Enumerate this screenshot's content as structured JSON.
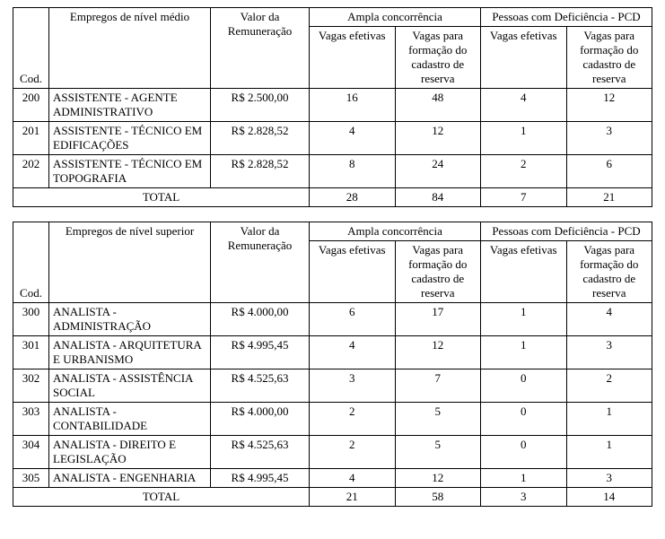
{
  "colors": {
    "text": "#000000",
    "border": "#000000",
    "background": "#ffffff"
  },
  "typography": {
    "family": "Times New Roman",
    "base_size_pt": 10
  },
  "tables": [
    {
      "headers": {
        "cod": "Cod.",
        "job": "Empregos de nível médio",
        "value": "Valor da Remuneração",
        "ampla": "Ampla concorrência",
        "pcd": "Pessoas com Deficiência - PCD",
        "vagas_efetivas": "Vagas efetivas",
        "vagas_cadastro": "Vagas para formação do cadastro de reserva",
        "total": "TOTAL"
      },
      "column_styles": {
        "cod_align": "center",
        "job_align": "left",
        "value_align": "center",
        "num_align": "center"
      },
      "rows": [
        {
          "cod": "200",
          "job": "ASSISTENTE - AGENTE ADMINISTRATIVO",
          "value": "R$ 2.500,00",
          "ae": "16",
          "ac": "48",
          "pe": "4",
          "pc": "12"
        },
        {
          "cod": "201",
          "job": "ASSISTENTE - TÉCNICO EM EDIFICAÇÕES",
          "value": "R$ 2.828,52",
          "ae": "4",
          "ac": "12",
          "pe": "1",
          "pc": "3"
        },
        {
          "cod": "202",
          "job": "ASSISTENTE - TÉCNICO EM TOPOGRAFIA",
          "value": "R$ 2.828,52",
          "ae": "8",
          "ac": "24",
          "pe": "2",
          "pc": "6"
        }
      ],
      "totals": {
        "ae": "28",
        "ac": "84",
        "pe": "7",
        "pc": "21"
      }
    },
    {
      "headers": {
        "cod": "Cod.",
        "job": "Empregos de nível superior",
        "value": "Valor da Remuneração",
        "ampla": "Ampla concorrência",
        "pcd": "Pessoas com Deficiência - PCD",
        "vagas_efetivas": "Vagas efetivas",
        "vagas_cadastro": "Vagas para formação do cadastro de reserva",
        "total": "TOTAL"
      },
      "column_styles": {
        "cod_align": "center",
        "job_align": "left",
        "value_align": "center",
        "num_align": "center"
      },
      "rows": [
        {
          "cod": "300",
          "job": "ANALISTA - ADMINISTRAÇÃO",
          "value": "R$ 4.000,00",
          "ae": "6",
          "ac": "17",
          "pe": "1",
          "pc": "4"
        },
        {
          "cod": "301",
          "job": "ANALISTA - ARQUITETURA E URBANISMO",
          "value": "R$ 4.995,45",
          "ae": "4",
          "ac": "12",
          "pe": "1",
          "pc": "3"
        },
        {
          "cod": "302",
          "job": "ANALISTA - ASSISTÊNCIA SOCIAL",
          "value": "R$ 4.525,63",
          "ae": "3",
          "ac": "7",
          "pe": "0",
          "pc": "2"
        },
        {
          "cod": "303",
          "job": "ANALISTA - CONTABILIDADE",
          "value": "R$ 4.000,00",
          "ae": "2",
          "ac": "5",
          "pe": "0",
          "pc": "1"
        },
        {
          "cod": "304",
          "job": "ANALISTA - DIREITO E LEGISLAÇÃO",
          "value": "R$ 4.525,63",
          "ae": "2",
          "ac": "5",
          "pe": "0",
          "pc": "1"
        },
        {
          "cod": "305",
          "job": "ANALISTA - ENGENHARIA",
          "value": "R$ 4.995,45",
          "ae": "4",
          "ac": "12",
          "pe": "1",
          "pc": "3"
        }
      ],
      "totals": {
        "ae": "21",
        "ac": "58",
        "pe": "3",
        "pc": "14"
      }
    }
  ]
}
